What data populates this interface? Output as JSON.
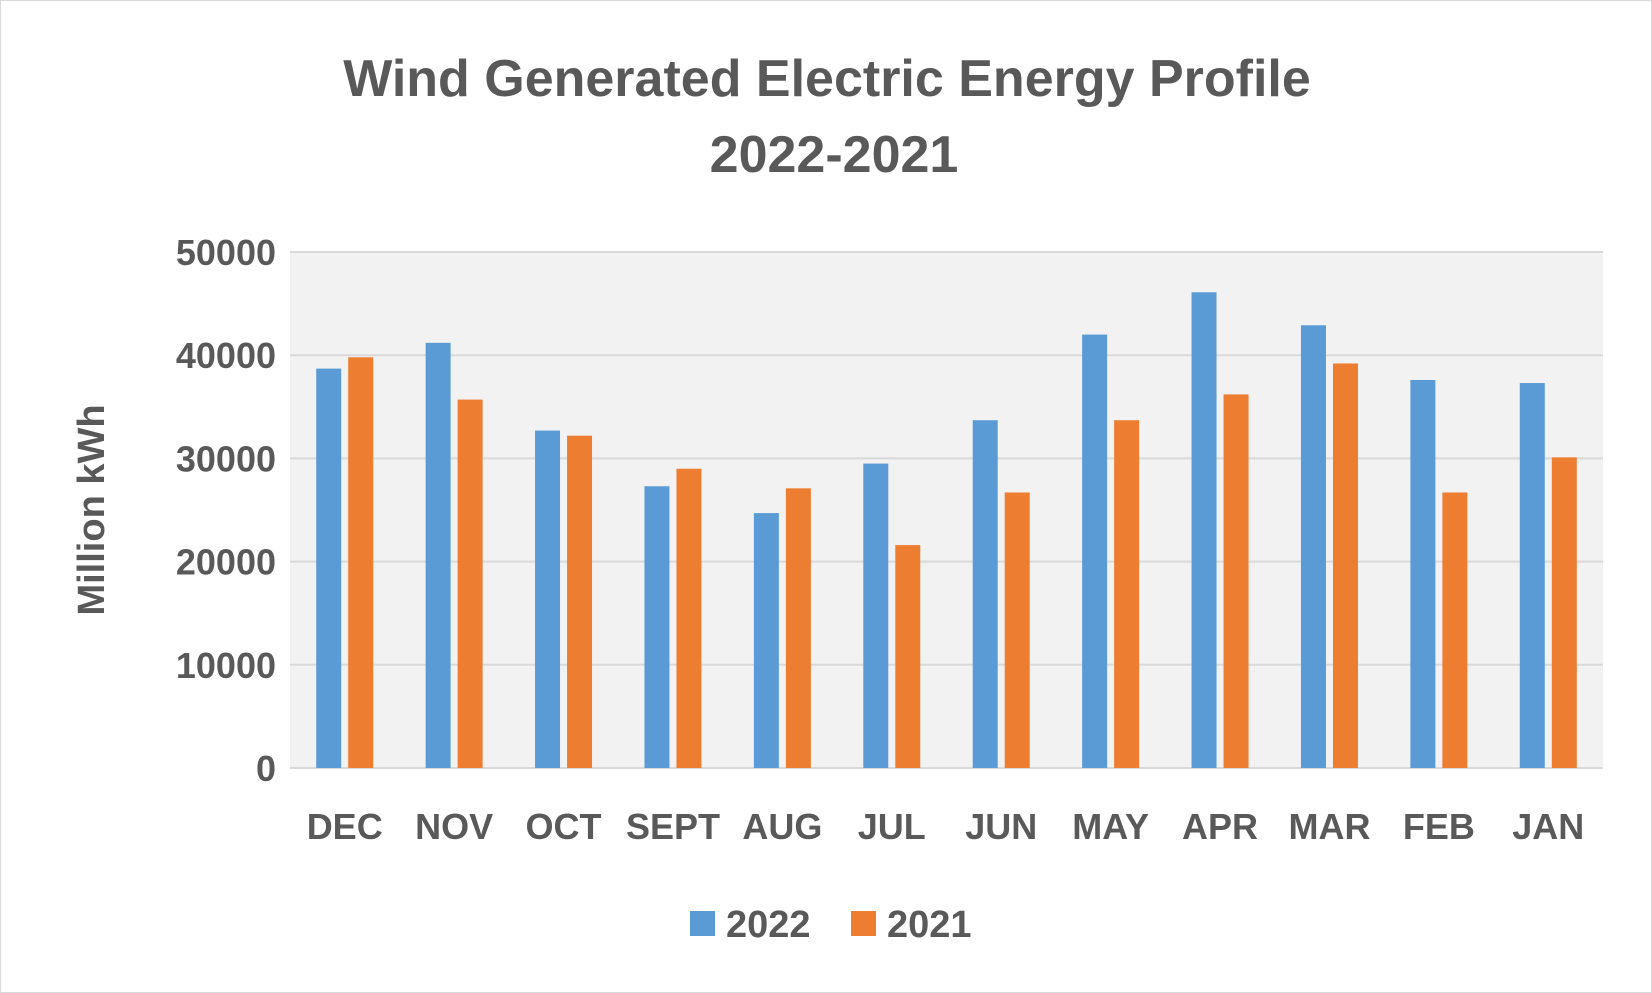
{
  "chart_data": {
    "type": "bar",
    "title_line1": "Wind Generated Electric Energy Profile",
    "title_line2": "2022-2021",
    "xlabel": "",
    "ylabel": "Million kWh",
    "ylim": [
      0,
      50000
    ],
    "yticks": [
      "0",
      "10000",
      "20000",
      "30000",
      "40000",
      "50000"
    ],
    "grid": true,
    "legend_position": "bottom",
    "categories": [
      "DEC",
      "NOV",
      "OCT",
      "SEPT",
      "AUG",
      "JUL",
      "JUN",
      "MAY",
      "APR",
      "MAR",
      "FEB",
      "JAN"
    ],
    "series": [
      {
        "name": "2022",
        "color": "#5b9bd5",
        "values": [
          38700,
          41200,
          32700,
          27300,
          24700,
          29500,
          33700,
          42000,
          46100,
          42900,
          37600,
          37300
        ]
      },
      {
        "name": "2021",
        "color": "#ed7d31",
        "values": [
          39800,
          35700,
          32200,
          29000,
          27100,
          21600,
          26700,
          33700,
          36200,
          39200,
          26700,
          30100
        ]
      }
    ],
    "plot_background": "#f2f2f2",
    "grid_color": "#d9d9d9"
  }
}
